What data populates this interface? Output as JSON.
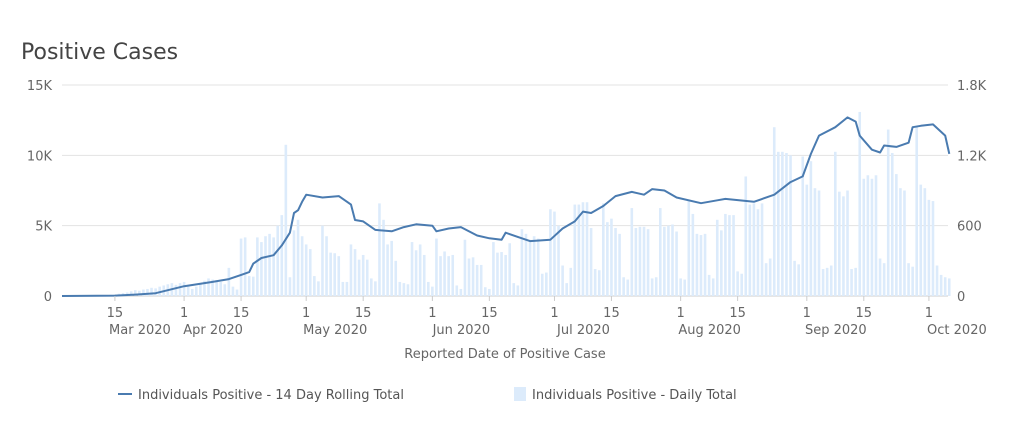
{
  "title": "Positive Cases",
  "chart_data": {
    "type": "bar+line",
    "title": "Positive Cases",
    "xlabel": "Reported Date of Positive Case",
    "start_date": "2020-03-02",
    "end_date": "2020-10-06",
    "left_axis": {
      "ylim": [
        0,
        15000
      ],
      "ticks": [
        0,
        5000,
        10000,
        15000
      ],
      "tick_labels": [
        "0",
        "5K",
        "10K",
        "15K"
      ]
    },
    "right_axis": {
      "ylim": [
        0,
        1800
      ],
      "ticks": [
        0,
        600,
        1200,
        1800
      ],
      "tick_labels": [
        "0",
        "600",
        "1.2K",
        "1.8K"
      ]
    },
    "x_ticks": [
      {
        "date": "2020-03-15",
        "label": "15",
        "month": "Mar 2020"
      },
      {
        "date": "2020-04-01",
        "label": "1",
        "month": "Apr 2020"
      },
      {
        "date": "2020-04-15",
        "label": "15"
      },
      {
        "date": "2020-05-01",
        "label": "1",
        "month": "May 2020"
      },
      {
        "date": "2020-05-15",
        "label": "15"
      },
      {
        "date": "2020-06-01",
        "label": "1",
        "month": "Jun 2020"
      },
      {
        "date": "2020-06-15",
        "label": "15"
      },
      {
        "date": "2020-07-01",
        "label": "1",
        "month": "Jul 2020"
      },
      {
        "date": "2020-07-15",
        "label": "15"
      },
      {
        "date": "2020-08-01",
        "label": "1",
        "month": "Aug 2020"
      },
      {
        "date": "2020-08-15",
        "label": "15"
      },
      {
        "date": "2020-09-01",
        "label": "1",
        "month": "Sep 2020"
      },
      {
        "date": "2020-09-15",
        "label": "15"
      },
      {
        "date": "2020-10-01",
        "label": "1",
        "month": "Oct 2020"
      }
    ],
    "grid": true,
    "legend_position": "bottom",
    "series": [
      {
        "name": "Individuals Positive - 14 Day Rolling Total",
        "type": "line",
        "axis": "left",
        "color": "#4a7bb0",
        "points": [
          [
            "2020-03-02",
            0
          ],
          [
            "2020-03-15",
            30
          ],
          [
            "2020-03-20",
            100
          ],
          [
            "2020-03-25",
            200
          ],
          [
            "2020-04-01",
            700
          ],
          [
            "2020-04-08",
            1000
          ],
          [
            "2020-04-12",
            1200
          ],
          [
            "2020-04-15",
            1500
          ],
          [
            "2020-04-17",
            1700
          ],
          [
            "2020-04-18",
            2300
          ],
          [
            "2020-04-20",
            2700
          ],
          [
            "2020-04-23",
            2900
          ],
          [
            "2020-04-25",
            3600
          ],
          [
            "2020-04-27",
            4500
          ],
          [
            "2020-04-28",
            5900
          ],
          [
            "2020-04-29",
            6100
          ],
          [
            "2020-04-30",
            6700
          ],
          [
            "2020-05-01",
            7200
          ],
          [
            "2020-05-05",
            7000
          ],
          [
            "2020-05-09",
            7100
          ],
          [
            "2020-05-12",
            6500
          ],
          [
            "2020-05-13",
            5400
          ],
          [
            "2020-05-15",
            5300
          ],
          [
            "2020-05-18",
            4700
          ],
          [
            "2020-05-22",
            4600
          ],
          [
            "2020-05-25",
            4900
          ],
          [
            "2020-05-28",
            5100
          ],
          [
            "2020-06-01",
            5000
          ],
          [
            "2020-06-02",
            4600
          ],
          [
            "2020-06-05",
            4800
          ],
          [
            "2020-06-08",
            4900
          ],
          [
            "2020-06-12",
            4300
          ],
          [
            "2020-06-15",
            4100
          ],
          [
            "2020-06-18",
            4000
          ],
          [
            "2020-06-19",
            4500
          ],
          [
            "2020-06-22",
            4200
          ],
          [
            "2020-06-25",
            3900
          ],
          [
            "2020-06-30",
            4000
          ],
          [
            "2020-07-03",
            4800
          ],
          [
            "2020-07-06",
            5300
          ],
          [
            "2020-07-08",
            6000
          ],
          [
            "2020-07-10",
            5900
          ],
          [
            "2020-07-13",
            6400
          ],
          [
            "2020-07-16",
            7100
          ],
          [
            "2020-07-20",
            7400
          ],
          [
            "2020-07-23",
            7200
          ],
          [
            "2020-07-25",
            7600
          ],
          [
            "2020-07-28",
            7500
          ],
          [
            "2020-07-31",
            7000
          ],
          [
            "2020-08-06",
            6600
          ],
          [
            "2020-08-10",
            6800
          ],
          [
            "2020-08-12",
            6900
          ],
          [
            "2020-08-19",
            6700
          ],
          [
            "2020-08-24",
            7200
          ],
          [
            "2020-08-28",
            8100
          ],
          [
            "2020-08-31",
            8500
          ],
          [
            "2020-09-02",
            10100
          ],
          [
            "2020-09-04",
            11400
          ],
          [
            "2020-09-08",
            12000
          ],
          [
            "2020-09-11",
            12700
          ],
          [
            "2020-09-13",
            12400
          ],
          [
            "2020-09-14",
            11400
          ],
          [
            "2020-09-17",
            10400
          ],
          [
            "2020-09-19",
            10200
          ],
          [
            "2020-09-20",
            10700
          ],
          [
            "2020-09-23",
            10600
          ],
          [
            "2020-09-26",
            10900
          ],
          [
            "2020-09-27",
            12000
          ],
          [
            "2020-09-29",
            12100
          ],
          [
            "2020-10-02",
            12200
          ],
          [
            "2020-10-05",
            11400
          ],
          [
            "2020-10-06",
            10100
          ]
        ]
      },
      {
        "name": "Individuals Positive - Daily Total",
        "type": "bar",
        "axis": "right",
        "color": "#dcebfb",
        "values": [
          0,
          0,
          1,
          1,
          2,
          2,
          3,
          3,
          4,
          5,
          6,
          8,
          10,
          12,
          20,
          25,
          30,
          40,
          50,
          45,
          55,
          60,
          70,
          65,
          80,
          90,
          100,
          110,
          95,
          110,
          120,
          90,
          60,
          80,
          100,
          130,
          150,
          140,
          135,
          120,
          100,
          240,
          80,
          55,
          490,
          500,
          170,
          165,
          500,
          460,
          510,
          530,
          500,
          600,
          690,
          1290,
          160,
          560,
          650,
          510,
          440,
          400,
          170,
          125,
          600,
          510,
          370,
          365,
          340,
          120,
          120,
          440,
          400,
          310,
          350,
          310,
          150,
          125,
          790,
          650,
          440,
          470,
          300,
          120,
          110,
          100,
          460,
          390,
          440,
          350,
          120,
          80,
          490,
          340,
          380,
          340,
          350,
          90,
          60,
          480,
          320,
          330,
          265,
          265,
          75,
          60,
          460,
          370,
          375,
          350,
          450,
          110,
          90,
          570,
          530,
          480,
          510,
          490,
          190,
          200,
          740,
          720,
          600,
          260,
          110,
          240,
          780,
          780,
          800,
          800,
          580,
          230,
          220,
          790,
          630,
          660,
          580,
          530,
          160,
          140,
          750,
          580,
          590,
          590,
          570,
          150,
          160,
          750,
          590,
          600,
          610,
          550,
          150,
          140,
          820,
          700,
          530,
          520,
          530,
          180,
          150,
          650,
          560,
          700,
          690,
          690,
          210,
          190,
          1020,
          780,
          790,
          740,
          790,
          280,
          320,
          1440,
          1230,
          1230,
          1220,
          1200,
          300,
          270,
          1190,
          950,
          1150,
          920,
          900,
          230,
          240,
          260,
          1230,
          890,
          850,
          900,
          230,
          240,
          1570,
          1000,
          1030,
          1000,
          1030,
          320,
          280,
          1420,
          1220,
          1040,
          920,
          900,
          280,
          250,
          1440,
          950,
          920,
          820,
          810,
          260,
          180,
          160,
          150
        ]
      }
    ]
  }
}
